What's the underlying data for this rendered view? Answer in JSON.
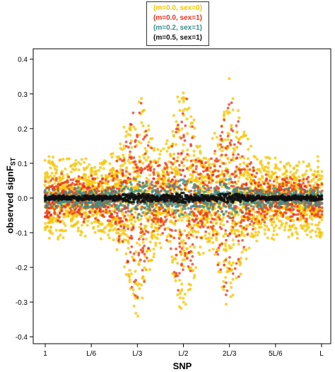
{
  "chart_data": {
    "type": "scatter",
    "title": "",
    "xlabel": "SNP",
    "ylabel_prefix": "observed signF",
    "ylabel_subscript": "ST",
    "x_ticks": [
      "1",
      "L/6",
      "L/3",
      "L/2",
      "2L/3",
      "5L/6",
      "L"
    ],
    "y_ticks": [
      "-0.4",
      "-0.3",
      "-0.2",
      "-0.1",
      "0.0",
      "0.1",
      "0.2",
      "0.3",
      "0.4"
    ],
    "ylim": [
      -0.42,
      0.43
    ],
    "grid": false,
    "legend_position": "top-center",
    "x_domain_note": "SNP position along chromosome from 1 to L",
    "selected_loci_at": [
      0.333,
      0.5,
      0.667
    ],
    "series": [
      {
        "name": "(m=0.0, sex=0)",
        "color": "#f5c400",
        "spread_baseline": 0.12,
        "peak": 0.33,
        "trough": -0.36
      },
      {
        "name": "(m=0.0, sex=1)",
        "color": "#e8321e",
        "spread_baseline": 0.07,
        "peak": 0.3,
        "trough": -0.35
      },
      {
        "name": "(m=0.2, sex=1)",
        "color": "#3a8e8a",
        "spread_baseline": 0.03,
        "peak": 0.06,
        "trough": -0.06
      },
      {
        "name": "(m=0.5, sex=1)",
        "color": "#111111",
        "spread_baseline": 0.008,
        "peak": 0.015,
        "trough": -0.015
      }
    ]
  }
}
